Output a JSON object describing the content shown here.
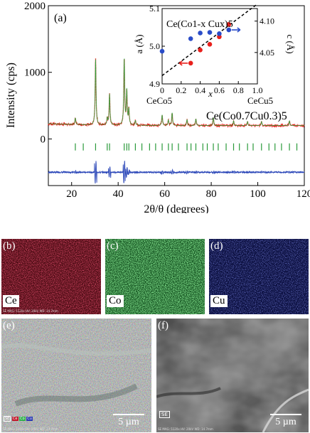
{
  "figure": {
    "panels": [
      {
        "id": "a",
        "label": "(a)"
      },
      {
        "id": "b",
        "label": "(b)",
        "element": "Ce",
        "color": "#c0182a"
      },
      {
        "id": "c",
        "label": "(c)",
        "element": "Co",
        "color": "#2fb04a"
      },
      {
        "id": "d",
        "label": "(d)",
        "element": "Cu",
        "color": "#2936b0"
      },
      {
        "id": "e",
        "label": "(e)",
        "scalebar": "5 µm"
      },
      {
        "id": "f",
        "label": "(f)",
        "scalebar": "5 µm",
        "mode": "SE"
      }
    ],
    "sem_info": {
      "b": "SE MAG: 5120x HV: 20kV WD: 14.7mm",
      "e": "SE MAG: 5120x HV: 20kV WD: 14.7mm",
      "f": "SE MAG: 5120x HV: 20kV WD: 14.7mm"
    },
    "legend_e": [
      "SE",
      "Ce",
      "Co",
      "Cu"
    ]
  },
  "chart_data": [
    {
      "type": "line",
      "title": "",
      "xlabel": "2θ/θ (degrees)",
      "ylabel": "Intensity (cps)",
      "xlim": [
        10,
        120
      ],
      "ylim": [
        -700,
        2000
      ],
      "xticks": [
        20,
        40,
        60,
        80,
        100,
        120
      ],
      "yticks": [
        0,
        1000,
        2000
      ],
      "annotation": "Ce(Co0.7Cu0.3)5",
      "series": [
        {
          "role": "observed",
          "color": "#e8201c",
          "baseline": 200,
          "peaks": [
            [
              21.6,
              100
            ],
            [
              30.3,
              990
            ],
            [
              35.3,
              100
            ],
            [
              36.3,
              470
            ],
            [
              42.6,
              1000
            ],
            [
              43.7,
              510
            ],
            [
              44.6,
              230
            ],
            [
              47.4,
              70
            ],
            [
              58.9,
              160
            ],
            [
              61.6,
              80
            ],
            [
              63.2,
              190
            ],
            [
              69.6,
              90
            ],
            [
              73.4,
              100
            ],
            [
              80.9,
              120
            ],
            [
              89.6,
              70
            ],
            [
              95.6,
              60
            ],
            [
              101.6,
              60
            ],
            [
              113.6,
              70
            ]
          ]
        },
        {
          "role": "calculated",
          "color": "#1aa83a"
        },
        {
          "role": "bragg",
          "color": "#2a9a3a",
          "y": -120,
          "positions": [
            21.6,
            25.0,
            30.3,
            35.3,
            36.3,
            42.6,
            43.7,
            44.6,
            47.4,
            50.2,
            53.5,
            56.1,
            58.9,
            61.6,
            63.2,
            65.9,
            69.6,
            71.3,
            73.4,
            76.4,
            78.3,
            80.9,
            83.0,
            86.4,
            89.6,
            92.1,
            95.6,
            98.0,
            101.6,
            104.8,
            107.4,
            110.2,
            113.6,
            116.8
          ]
        },
        {
          "role": "difference",
          "color": "#2a46b8",
          "y": -500
        }
      ]
    },
    {
      "type": "scatter",
      "title": "Ce(Co1-x Cux)5",
      "xlabel": "x",
      "ylabel": "a (Å)",
      "ylabel_right": "c (Å)",
      "xlim": [
        0,
        1.0
      ],
      "xticks": [
        0,
        0.2,
        0.4,
        0.6,
        0.8,
        1.0
      ],
      "xtick_labels": [
        "0",
        "0.2",
        "0.4",
        "0.6",
        "0.8",
        "1.0"
      ],
      "ylim": [
        4.9,
        5.1
      ],
      "yticks": [
        4.9,
        5.0,
        5.1
      ],
      "ylim_right": [
        4.0,
        4.12
      ],
      "yticks_right": [
        4.05,
        4.1
      ],
      "end_labels": [
        "CeCo5",
        "CeCu5"
      ],
      "trendline": {
        "x": [
          0,
          1.0
        ],
        "y": [
          4.922,
          5.112
        ],
        "style": "dashed"
      },
      "series": [
        {
          "name": "a",
          "axis": "left",
          "color": "#e8201c",
          "x": [
            0.3,
            0.4,
            0.5,
            0.6,
            0.7
          ],
          "y": [
            4.955,
            4.99,
            5.005,
            5.025,
            5.058
          ]
        },
        {
          "name": "c",
          "axis": "right",
          "color": "#2a4cc8",
          "x": [
            0,
            0.3,
            0.4,
            0.5,
            0.6,
            0.7
          ],
          "y": [
            4.052,
            4.072,
            4.081,
            4.082,
            4.08,
            4.086
          ]
        }
      ]
    }
  ]
}
